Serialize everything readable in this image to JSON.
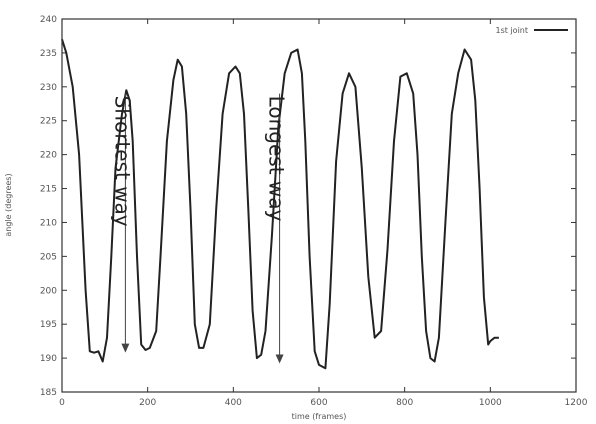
{
  "chart_data": {
    "type": "line",
    "xlabel": "time (frames)",
    "ylabel": "angle (degrees)",
    "xlim": [
      0,
      1200
    ],
    "ylim": [
      185,
      240
    ],
    "xticks": [
      0,
      200,
      400,
      600,
      800,
      1000,
      1200
    ],
    "yticks": [
      185,
      190,
      195,
      200,
      205,
      210,
      215,
      220,
      225,
      230,
      235,
      240
    ],
    "grid": false,
    "legend_position": "top-right",
    "series": [
      {
        "name": "1st joint",
        "color": "#222222",
        "x": [
          0,
          10,
          25,
          40,
          55,
          65,
          75,
          85,
          95,
          105,
          115,
          125,
          140,
          150,
          158,
          165,
          175,
          185,
          195,
          205,
          220,
          230,
          245,
          260,
          270,
          280,
          290,
          300,
          310,
          320,
          330,
          345,
          360,
          375,
          390,
          405,
          415,
          425,
          435,
          445,
          455,
          465,
          475,
          490,
          505,
          520,
          535,
          550,
          560,
          568,
          578,
          590,
          600,
          615,
          625,
          640,
          655,
          670,
          685,
          700,
          715,
          730,
          745,
          760,
          775,
          790,
          805,
          820,
          830,
          840,
          850,
          860,
          870,
          880,
          895,
          910,
          925,
          940,
          955,
          965,
          975,
          985,
          995,
          1000,
          1010,
          1020
        ],
        "values": [
          237,
          235,
          230,
          220,
          200,
          191,
          190.8,
          191,
          189.5,
          193,
          205,
          218,
          226,
          229.5,
          228,
          222,
          205,
          192,
          191.2,
          191.5,
          194,
          205,
          222,
          231,
          234,
          233,
          226,
          212,
          195,
          191.5,
          191.5,
          195,
          212,
          226,
          232,
          233,
          232,
          226,
          212,
          197,
          190,
          190.5,
          194,
          208,
          224,
          232,
          235,
          235.5,
          232,
          222,
          205,
          191,
          189,
          188.5,
          198,
          219,
          229,
          232,
          230,
          218,
          202,
          193,
          194,
          206,
          222,
          231.5,
          232,
          229,
          220,
          205,
          194,
          190,
          189.5,
          193,
          210,
          226,
          232,
          235.5,
          234,
          228,
          215,
          199,
          192,
          192.5,
          193,
          193
        ]
      }
    ],
    "annotations": [
      {
        "text": "Shortest way",
        "x": 148,
        "y": 190.8
      },
      {
        "text": "Longest way",
        "x": 508,
        "y": 189.2
      }
    ]
  }
}
